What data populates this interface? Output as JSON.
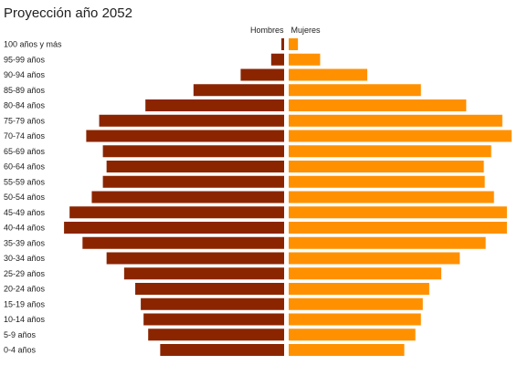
{
  "chart_data": {
    "type": "bar",
    "orientation": "horizontal",
    "layout": "population-pyramid",
    "title": "Proyección año 2052",
    "categories": [
      "100 años y más",
      "95-99 años",
      "90-94 años",
      "85-89 años",
      "80-84 años",
      "75-79 años",
      "70-74 años",
      "65-69 años",
      "60-64 años",
      "55-59 años",
      "50-54 años",
      "45-49 años",
      "40-44 años",
      "35-39 años",
      "30-34 años",
      "25-29 años",
      "20-24 años",
      "15-19 años",
      "10-14 años",
      "5-9 años",
      "0-4 años"
    ],
    "series": [
      {
        "name": "Hombres",
        "color": "#8b2500",
        "side": "left",
        "values": [
          3,
          14,
          47,
          98,
          150,
          200,
          214,
          196,
          192,
          196,
          208,
          232,
          238,
          218,
          192,
          173,
          161,
          155,
          152,
          147,
          134
        ]
      },
      {
        "name": "Mujeres",
        "color": "#ff9100",
        "side": "right",
        "values": [
          10,
          34,
          85,
          143,
          192,
          231,
          241,
          219,
          211,
          212,
          222,
          236,
          236,
          213,
          185,
          165,
          152,
          145,
          143,
          137,
          125
        ]
      }
    ],
    "value_axis_max": 245,
    "legend_position": "top-center",
    "grid": false,
    "axis_labels_visible": false
  }
}
